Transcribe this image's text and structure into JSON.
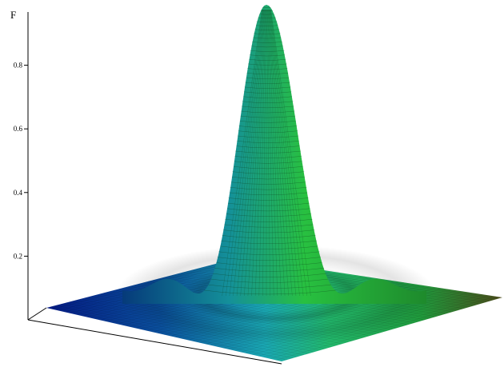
{
  "chart_data": {
    "type": "surface",
    "zlabel": "F",
    "z_ticks": [
      0.2,
      0.4,
      0.6,
      0.8
    ],
    "zlim": [
      0,
      1
    ],
    "peak_value": 1.0,
    "colormap": [
      "#041a82",
      "#1aa0b8",
      "#2bd03a",
      "#5a5018"
    ],
    "grid": true
  }
}
